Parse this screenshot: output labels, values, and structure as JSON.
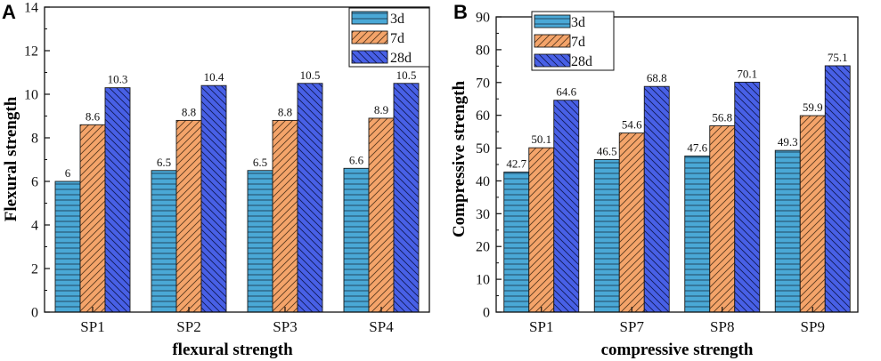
{
  "colors": {
    "3d": "#4aa8d6",
    "7d": "#f4a46a",
    "28d": "#4860e6"
  },
  "chart_data": [
    {
      "panel": "A",
      "type": "bar",
      "title": "",
      "xlabel": "flexural strength",
      "ylabel": "Flexural strength",
      "categories": [
        "SP1",
        "SP2",
        "SP3",
        "SP4"
      ],
      "ylim": [
        0,
        14
      ],
      "yticks": [
        0,
        2,
        4,
        6,
        8,
        10,
        12,
        14
      ],
      "legend_position": "top-right",
      "series": [
        {
          "name": "3d",
          "values": [
            6,
            6.5,
            6.5,
            6.6
          ],
          "labels": [
            "6",
            "6.5",
            "6.5",
            "6.6"
          ]
        },
        {
          "name": "7d",
          "values": [
            8.6,
            8.8,
            8.8,
            8.9
          ],
          "labels": [
            "8.6",
            "8.8",
            "8.8",
            "8.9"
          ]
        },
        {
          "name": "28d",
          "values": [
            10.3,
            10.4,
            10.5,
            10.5
          ],
          "labels": [
            "10.3",
            "10.4",
            "10.5",
            "10.5"
          ]
        }
      ]
    },
    {
      "panel": "B",
      "type": "bar",
      "title": "",
      "xlabel": "compressive strength",
      "ylabel": "Compressive strength",
      "categories": [
        "SP1",
        "SP7",
        "SP8",
        "SP9"
      ],
      "ylim": [
        0,
        90
      ],
      "yticks": [
        0,
        10,
        20,
        30,
        40,
        50,
        60,
        70,
        80,
        90
      ],
      "legend_position": "top-left",
      "series": [
        {
          "name": "3d",
          "values": [
            42.7,
            46.5,
            47.6,
            49.3
          ],
          "labels": [
            "42.7",
            "46.5",
            "47.6",
            "49.3"
          ]
        },
        {
          "name": "7d",
          "values": [
            50.1,
            54.6,
            56.8,
            59.9
          ],
          "labels": [
            "50.1",
            "54.6",
            "56.8",
            "59.9"
          ]
        },
        {
          "name": "28d",
          "values": [
            64.6,
            68.8,
            70.1,
            75.1
          ],
          "labels": [
            "64.6",
            "68.8",
            "70.1",
            "75.1"
          ]
        }
      ]
    }
  ]
}
